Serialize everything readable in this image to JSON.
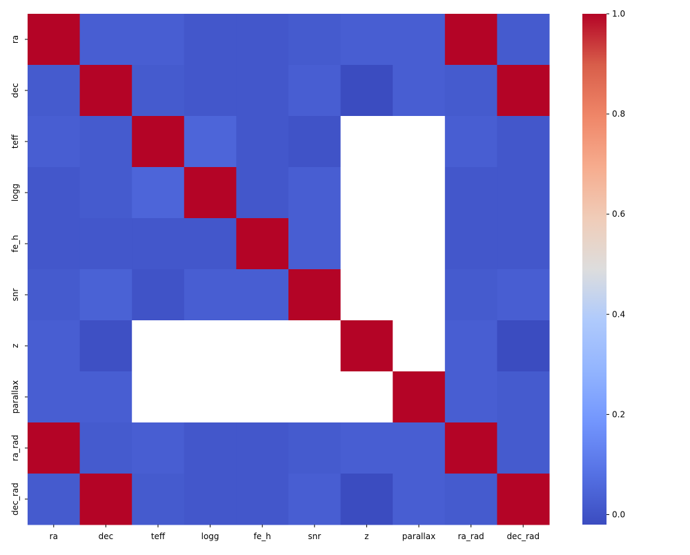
{
  "chart_data": {
    "type": "heatmap",
    "title": "",
    "xlabel": "",
    "ylabel": "",
    "x_categories": [
      "ra",
      "dec",
      "teff",
      "logg",
      "fe_h",
      "snr",
      "z",
      "parallax",
      "ra_rad",
      "dec_rad"
    ],
    "y_categories": [
      "ra",
      "dec",
      "teff",
      "logg",
      "fe_h",
      "snr",
      "z",
      "parallax",
      "ra_rad",
      "dec_rad"
    ],
    "values": [
      [
        1.0,
        0.03,
        0.03,
        0.01,
        0.01,
        0.02,
        0.03,
        0.03,
        1.0,
        0.02
      ],
      [
        0.02,
        1.0,
        0.02,
        0.01,
        0.01,
        0.03,
        -0.02,
        0.03,
        0.02,
        1.0
      ],
      [
        0.03,
        0.02,
        1.0,
        0.05,
        0.01,
        0.0,
        null,
        null,
        0.03,
        0.01
      ],
      [
        0.01,
        0.02,
        0.05,
        1.0,
        0.01,
        0.03,
        null,
        null,
        0.01,
        0.01
      ],
      [
        0.01,
        0.01,
        0.01,
        0.01,
        1.0,
        0.03,
        null,
        null,
        0.01,
        0.01
      ],
      [
        0.02,
        0.04,
        0.0,
        0.03,
        0.03,
        1.0,
        null,
        null,
        0.02,
        0.03
      ],
      [
        0.03,
        -0.01,
        null,
        null,
        null,
        null,
        1.0,
        null,
        0.03,
        -0.02
      ],
      [
        0.03,
        0.03,
        null,
        null,
        null,
        null,
        null,
        1.0,
        0.03,
        0.02
      ],
      [
        1.0,
        0.02,
        0.03,
        0.01,
        0.01,
        0.02,
        0.03,
        0.03,
        1.0,
        0.02
      ],
      [
        0.02,
        1.0,
        0.02,
        0.01,
        0.01,
        0.03,
        -0.02,
        0.03,
        0.02,
        1.0
      ]
    ],
    "colormap": "coolwarm",
    "vmin": -0.02,
    "vmax": 1.0,
    "colorbar_ticks": [
      "0.0",
      "0.2",
      "0.4",
      "0.6",
      "0.8",
      "1.0"
    ],
    "colorbar_tick_values": [
      0.0,
      0.2,
      0.4,
      0.6,
      0.8,
      1.0
    ],
    "missing_color": "#ffffff",
    "grid": false,
    "legend": "colorbar-right"
  }
}
